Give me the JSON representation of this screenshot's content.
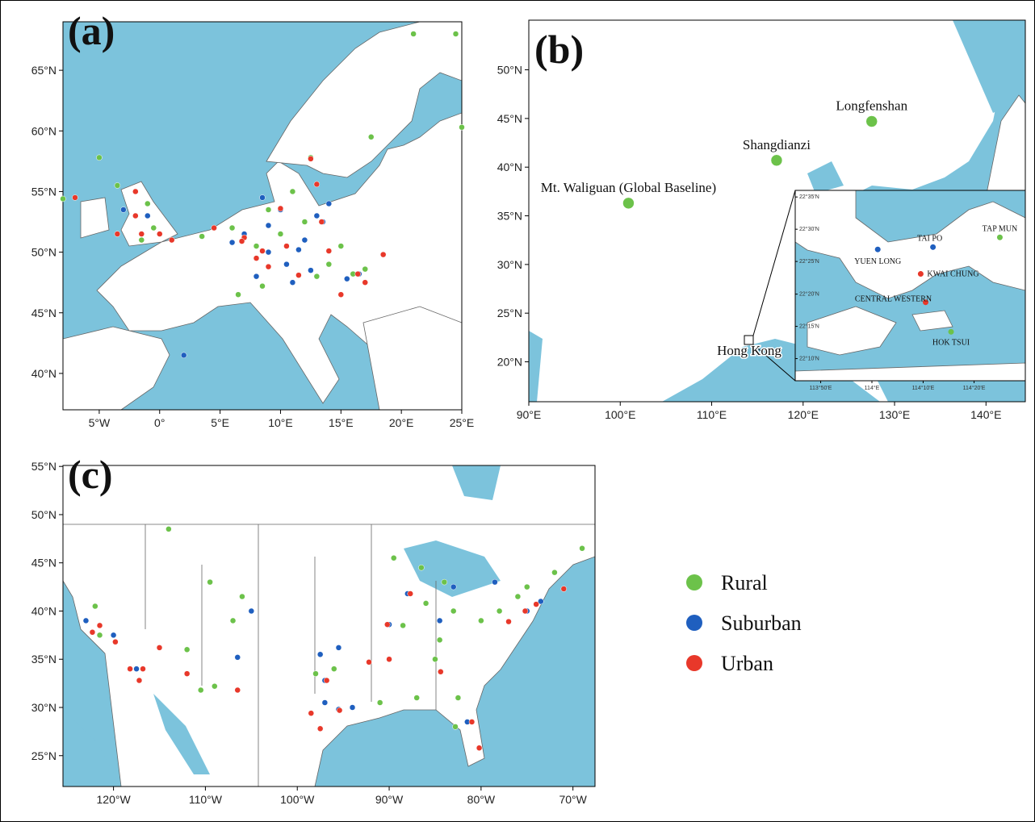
{
  "panels": [
    {
      "label": "(a)",
      "xlim": [
        -8,
        25
      ],
      "ylim": [
        37,
        69
      ],
      "xticks": [
        {
          "value": -5,
          "label": "5°W"
        },
        {
          "value": 0,
          "label": "0°"
        },
        {
          "value": 5,
          "label": "5°E"
        },
        {
          "value": 10,
          "label": "10°E"
        },
        {
          "value": 15,
          "label": "15°E"
        },
        {
          "value": 20,
          "label": "20°E"
        },
        {
          "value": 25,
          "label": "25°E"
        }
      ],
      "yticks": [
        {
          "value": 40,
          "label": "40°N"
        },
        {
          "value": 45,
          "label": "45°N"
        },
        {
          "value": 50,
          "label": "50°N"
        },
        {
          "value": 55,
          "label": "55°N"
        },
        {
          "value": 60,
          "label": "60°N"
        },
        {
          "value": 65,
          "label": "65°N"
        }
      ],
      "series": [
        {
          "x": [
            21,
            24.5,
            25,
            17.5,
            -5,
            -3.5,
            -1,
            -0.5,
            -1.5,
            6,
            8,
            10,
            12,
            14,
            16,
            6.5,
            8.5,
            13,
            11,
            12.5,
            15,
            3.5,
            -8,
            17,
            9
          ],
          "y": [
            68,
            68,
            60.3,
            59.5,
            57.8,
            55.5,
            54,
            52,
            51,
            52,
            50.5,
            51.5,
            52.5,
            49,
            48.2,
            46.5,
            47.2,
            48,
            55,
            57.8,
            50.5,
            51.3,
            54.4,
            48.6,
            53.5
          ]
        },
        {
          "x": [
            -3,
            -1,
            2,
            7,
            9,
            10.5,
            12,
            13.5,
            8,
            10,
            14,
            11,
            15.5,
            9,
            6,
            12.5,
            16.5,
            8.5,
            11.5,
            13
          ],
          "y": [
            53.5,
            53,
            41.5,
            51.5,
            50,
            49,
            51,
            52.5,
            48,
            53.5,
            54,
            47.5,
            47.8,
            52.2,
            50.8,
            48.5,
            48.2,
            54.5,
            50.2,
            53
          ]
        },
        {
          "x": [
            -7,
            -2,
            -1.5,
            0,
            -3.5,
            -2,
            1,
            7,
            8.5,
            9,
            11.5,
            13.4,
            10,
            6.8,
            14,
            16.4,
            18.5,
            12.5,
            13,
            8,
            10.5,
            4.5,
            15,
            17
          ],
          "y": [
            54.5,
            53,
            51.5,
            51.5,
            51.5,
            55,
            51,
            51.2,
            50.1,
            48.8,
            48.1,
            52.5,
            53.6,
            50.9,
            50.1,
            48.2,
            49.8,
            57.7,
            55.6,
            49.5,
            50.5,
            52,
            46.5,
            47.5
          ]
        }
      ]
    },
    {
      "label": "(b)",
      "xlim": [
        90,
        144.3
      ],
      "ylim": [
        15.9,
        55.1
      ],
      "xticks": [
        {
          "value": 90,
          "label": "90°E"
        },
        {
          "value": 100,
          "label": "100°E"
        },
        {
          "value": 110,
          "label": "110°E"
        },
        {
          "value": 120,
          "label": "120°E"
        },
        {
          "value": 130,
          "label": "130°E"
        },
        {
          "value": 140,
          "label": "140°E"
        }
      ],
      "yticks": [
        {
          "value": 20,
          "label": "20°N"
        },
        {
          "value": 25,
          "label": "25°N"
        },
        {
          "value": 30,
          "label": "30°N"
        },
        {
          "value": 35,
          "label": "35°N"
        },
        {
          "value": 40,
          "label": "40°N"
        },
        {
          "value": 45,
          "label": "45°N"
        },
        {
          "value": 50,
          "label": "50°N"
        }
      ],
      "series": [
        {
          "x": [
            100.9,
            117.1,
            127.5
          ],
          "y": [
            36.3,
            40.7,
            44.7
          ],
          "labels": [
            "Mt. Waliguan (Global Baseline)",
            "Shangdianzi",
            "Longfenshan"
          ]
        }
      ],
      "annotation": "Hong Kong",
      "inset": {
        "xlim": [
          113.75,
          114.5
        ],
        "ylim": [
          22.11,
          22.6
        ],
        "xticks": [
          {
            "value": 113.833,
            "label": "113°50'E"
          },
          {
            "value": 114,
            "label": "114°E"
          },
          {
            "value": 114.167,
            "label": "114°10'E"
          },
          {
            "value": 114.333,
            "label": "114°20'E"
          }
        ],
        "yticks": [
          {
            "value": 22.583,
            "label": "22°35'N"
          },
          {
            "value": 22.5,
            "label": "22°30'N"
          },
          {
            "value": 22.417,
            "label": "22°25'N"
          },
          {
            "value": 22.333,
            "label": "22°20'N"
          },
          {
            "value": 22.25,
            "label": "22°15'N"
          },
          {
            "value": 22.167,
            "label": "22°10'N"
          }
        ],
        "series": [
          {
            "x": [
              114.417,
              114.258
            ],
            "y": [
              22.479,
              22.236
            ],
            "labels": [
              "TAP MUN",
              "HOK TSUI"
            ]
          },
          {
            "x": [
              114.019,
              114.199
            ],
            "y": [
              22.448,
              22.454
            ],
            "labels": [
              "YUEN LONG",
              "TAI PO"
            ]
          },
          {
            "x": [
              114.159,
              114.175
            ],
            "y": [
              22.385,
              22.312
            ],
            "labels": [
              "KWAI CHUNG",
              "CENTRAL WESTERN"
            ]
          }
        ]
      }
    },
    {
      "label": "(c)",
      "xlim": [
        -125.5,
        -67.6
      ],
      "ylim": [
        21.8,
        55.1
      ],
      "xticks": [
        {
          "value": -120,
          "label": "120°W"
        },
        {
          "value": -110,
          "label": "110°W"
        },
        {
          "value": -100,
          "label": "100°W"
        },
        {
          "value": -90,
          "label": "90°W"
        },
        {
          "value": -80,
          "label": "80°W"
        },
        {
          "value": -70,
          "label": "70°W"
        }
      ],
      "yticks": [
        {
          "value": 25,
          "label": "25°N"
        },
        {
          "value": 30,
          "label": "30°N"
        },
        {
          "value": 35,
          "label": "35°N"
        },
        {
          "value": 40,
          "label": "40°N"
        },
        {
          "value": 45,
          "label": "45°N"
        },
        {
          "value": 50,
          "label": "50°N"
        },
        {
          "value": 55,
          "label": "55°N"
        }
      ],
      "series": [
        {
          "x": [
            -114,
            -109.5,
            -106,
            -107,
            -112,
            -109,
            -110.5,
            -122,
            -121.5,
            -86.5,
            -89.5,
            -84,
            -83,
            -78,
            -76,
            -80,
            -84.5,
            -85,
            -87,
            -82.5,
            -82.8,
            -91,
            -96,
            -98,
            -75,
            -72,
            -69,
            -88.5,
            -86
          ],
          "y": [
            48.5,
            43,
            41.5,
            39,
            36,
            32.2,
            31.8,
            40.5,
            37.5,
            44.5,
            45.5,
            43,
            40,
            40,
            41.5,
            39,
            37,
            35,
            31,
            31,
            28,
            30.5,
            34,
            33.5,
            42.5,
            44,
            46.5,
            38.5,
            40.8
          ]
        },
        {
          "x": [
            -123,
            -120,
            -117.5,
            -105,
            -106.5,
            -97.5,
            -95.5,
            -97,
            -95.5,
            -90,
            -88,
            -83,
            -84.5,
            -78.5,
            -75,
            -73.5,
            -81.5,
            -97,
            -94
          ],
          "y": [
            39,
            37.5,
            34,
            40,
            35.2,
            35.5,
            36.2,
            32.8,
            29.8,
            38.6,
            41.8,
            42.5,
            39,
            43,
            40,
            41,
            28.5,
            30.5,
            30
          ]
        },
        {
          "x": [
            -122.3,
            -121.5,
            -119.8,
            -118.2,
            -117.2,
            -116.8,
            -112,
            -115,
            -106.5,
            -96.8,
            -95.4,
            -97.5,
            -90.2,
            -87.7,
            -90,
            -84.4,
            -80.2,
            -81,
            -77,
            -74,
            -71,
            -75.2,
            -98.5,
            -92.2
          ],
          "y": [
            37.8,
            38.5,
            36.8,
            34,
            32.8,
            34,
            33.5,
            36.2,
            31.8,
            32.8,
            29.7,
            27.8,
            38.6,
            41.8,
            35,
            33.7,
            25.8,
            28.5,
            38.9,
            40.7,
            42.3,
            40,
            29.4,
            34.7
          ]
        }
      ]
    }
  ],
  "legend": [
    {
      "name": "Rural",
      "color": "#6cc24a"
    },
    {
      "name": "Suburban",
      "color": "#1f5fbf"
    },
    {
      "name": "Urban",
      "color": "#e8382a"
    }
  ]
}
